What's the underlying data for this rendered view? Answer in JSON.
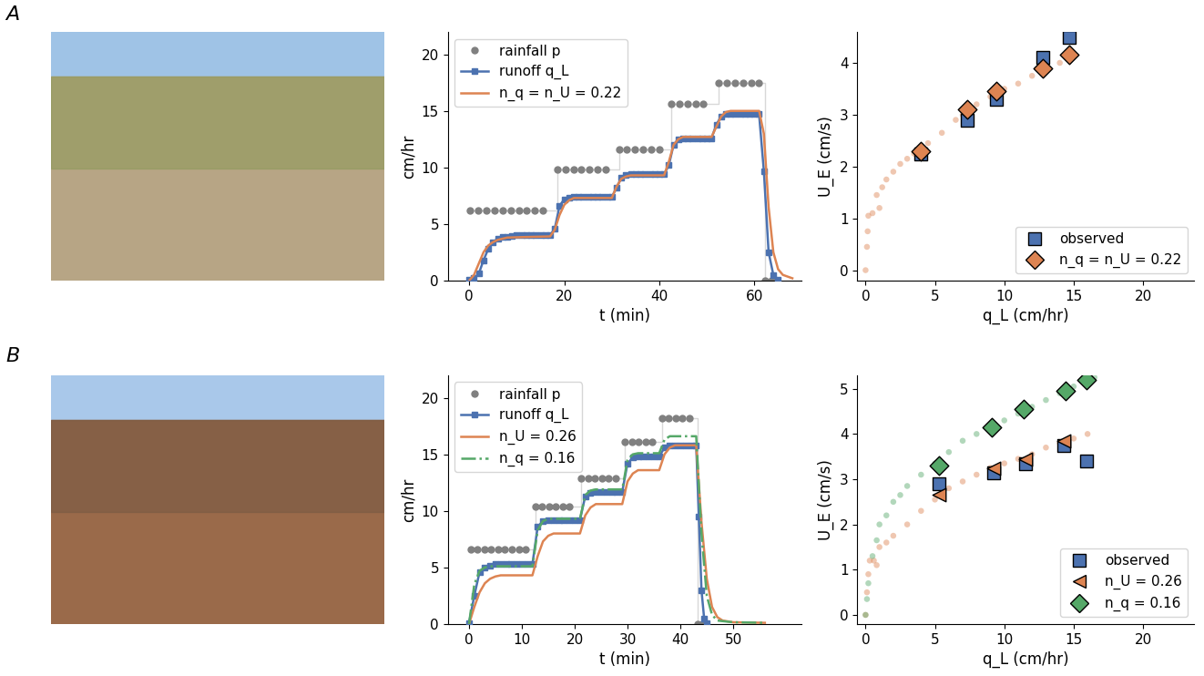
{
  "panel_labels": [
    "A",
    "B"
  ],
  "chart_data": [
    {
      "type": "line",
      "xlabel": "t (min)",
      "ylabel": "cm/hr",
      "xlim": [
        -4.5,
        70
      ],
      "xticks": [
        0,
        20,
        40,
        60
      ],
      "ylim": [
        0,
        22
      ],
      "yticks": [
        0,
        5,
        10,
        15,
        20
      ],
      "grid": false,
      "legend": "upper left",
      "series": [
        {
          "name": "rainfall p",
          "color": "#808080",
          "marker": "circle",
          "line_style": "steps",
          "x": [
            0.2,
            1.9,
            3.6,
            5.3,
            7.0,
            8.7,
            10.4,
            12.1,
            13.8,
            15.5,
            18.5,
            20.2,
            21.9,
            23.6,
            25.3,
            27.0,
            28.7,
            31.5,
            33.2,
            34.9,
            36.6,
            38.3,
            40.0,
            42.5,
            44.2,
            45.9,
            47.6,
            49.3,
            52.5,
            54.2,
            55.9,
            57.6,
            59.3,
            61.0,
            62.2,
            63.5
          ],
          "values": [
            6.2,
            6.2,
            6.2,
            6.2,
            6.2,
            6.2,
            6.2,
            6.2,
            6.2,
            6.2,
            9.8,
            9.8,
            9.8,
            9.8,
            9.8,
            9.8,
            9.8,
            11.6,
            11.6,
            11.6,
            11.6,
            11.6,
            11.6,
            15.6,
            15.6,
            15.6,
            15.6,
            15.6,
            17.5,
            17.5,
            17.5,
            17.5,
            17.5,
            17.5,
            0,
            0
          ]
        },
        {
          "name": "runoff q_L",
          "color": "#4c72b0",
          "marker": "square",
          "line_style": "solid",
          "x": [
            0,
            1,
            2,
            3,
            4,
            5,
            6,
            7,
            8,
            9,
            10,
            11,
            12,
            13,
            14,
            15,
            16,
            17,
            18,
            19,
            20,
            21,
            22,
            23,
            24,
            25,
            26,
            27,
            28,
            29,
            30,
            31,
            32,
            33,
            34,
            35,
            36,
            37,
            38,
            39,
            40,
            41,
            42,
            43,
            44,
            45,
            46,
            47,
            48,
            49,
            50,
            51,
            52,
            53,
            54,
            55,
            56,
            57,
            58,
            59,
            60,
            61,
            62,
            63,
            64,
            65
          ],
          "values": [
            0.1,
            0.2,
            0.6,
            1.8,
            2.8,
            3.4,
            3.7,
            3.85,
            3.9,
            3.95,
            4.0,
            4.0,
            4.0,
            4.0,
            4.0,
            4.0,
            4.0,
            4.0,
            4.6,
            6.6,
            7.2,
            7.35,
            7.4,
            7.4,
            7.4,
            7.4,
            7.4,
            7.4,
            7.4,
            7.4,
            7.4,
            8.2,
            9.1,
            9.35,
            9.4,
            9.4,
            9.4,
            9.4,
            9.4,
            9.4,
            9.4,
            9.4,
            10.2,
            12.0,
            12.5,
            12.6,
            12.6,
            12.6,
            12.6,
            12.6,
            12.6,
            12.6,
            13.8,
            14.5,
            14.7,
            14.7,
            14.7,
            14.7,
            14.7,
            14.7,
            14.7,
            14.7,
            9.7,
            2.5,
            0.5,
            0.1
          ]
        },
        {
          "name": "n_q = n_U = 0.22",
          "color": "#dd8452",
          "marker": "none",
          "line_style": "solid",
          "x": [
            0,
            1,
            2,
            3,
            4,
            5,
            6,
            7,
            8,
            12,
            17,
            18,
            19,
            20,
            21,
            22,
            30,
            31,
            32,
            33,
            34,
            41,
            42,
            43,
            44,
            45,
            51,
            52,
            53,
            54,
            55,
            61,
            62,
            63,
            64,
            65,
            66,
            68
          ],
          "values": [
            0,
            0.5,
            1.5,
            2.5,
            3.1,
            3.4,
            3.6,
            3.7,
            3.8,
            3.85,
            3.9,
            4.5,
            5.8,
            6.7,
            7.1,
            7.3,
            7.3,
            8.3,
            9.0,
            9.2,
            9.3,
            9.3,
            10.5,
            12.0,
            12.5,
            12.7,
            12.7,
            13.6,
            14.5,
            14.9,
            15.0,
            15.0,
            13.0,
            6.5,
            2.5,
            1.0,
            0.5,
            0.2
          ]
        }
      ]
    },
    {
      "type": "scatter",
      "xlabel": "q_L (cm/hr)",
      "ylabel": "U_E (cm/s)",
      "xlim": [
        -0.6,
        23.7
      ],
      "xticks": [
        0,
        5,
        10,
        15,
        20
      ],
      "ylim": [
        -0.2,
        4.6
      ],
      "yticks": [
        0,
        1,
        2,
        3,
        4
      ],
      "grid": false,
      "legend": "lower right",
      "series": [
        {
          "color": "#dd8452",
          "marker": "circle",
          "x": [
            0,
            0.1,
            0.15,
            0.2,
            0.5,
            0.8,
            1.0,
            1.2,
            1.5,
            2,
            2.5,
            3,
            3.5,
            4,
            4.5,
            5.5,
            6.5,
            7,
            8,
            9,
            10,
            11,
            12,
            13,
            14,
            15
          ],
          "values": [
            0,
            0.45,
            0.75,
            1.05,
            1.1,
            1.45,
            1.2,
            1.6,
            1.75,
            1.9,
            2.05,
            2.15,
            2.25,
            2.35,
            2.45,
            2.65,
            2.9,
            3.0,
            3.2,
            3.35,
            3.5,
            3.6,
            3.75,
            3.85,
            4.0,
            4.15
          ]
        },
        {
          "name": "observed",
          "color": "#4c72b0",
          "marker": "square",
          "x": [
            4.0,
            7.3,
            9.4,
            12.8,
            14.7
          ],
          "values": [
            2.25,
            2.9,
            3.3,
            4.1,
            4.5
          ]
        },
        {
          "name": "n_q = n_U = 0.22",
          "color": "#dd8452",
          "marker": "diamond",
          "x": [
            4.0,
            7.3,
            9.4,
            12.8,
            14.7
          ],
          "values": [
            2.3,
            3.1,
            3.45,
            3.9,
            4.15
          ]
        }
      ]
    },
    {
      "type": "line",
      "xlabel": "t (min)",
      "ylabel": "cm/hr",
      "xlim": [
        -4,
        63
      ],
      "xticks": [
        0,
        10,
        20,
        30,
        40,
        50
      ],
      "ylim": [
        0,
        22
      ],
      "yticks": [
        0,
        5,
        10,
        15,
        20
      ],
      "grid": false,
      "legend": "upper left",
      "series": [
        {
          "name": "rainfall p",
          "color": "#808080",
          "marker": "circle",
          "line_style": "steps",
          "x": [
            0.3,
            1.6,
            2.9,
            4.2,
            5.5,
            6.8,
            8.1,
            9.4,
            10.7,
            12.5,
            13.8,
            15.1,
            16.4,
            17.7,
            19.0,
            21.2,
            22.5,
            23.8,
            25.1,
            26.4,
            27.7,
            29.5,
            30.8,
            32.1,
            33.4,
            34.7,
            36.5,
            37.8,
            39.1,
            40.4,
            41.7,
            43.2,
            44.2
          ],
          "values": [
            6.6,
            6.6,
            6.6,
            6.6,
            6.6,
            6.6,
            6.6,
            6.6,
            6.6,
            10.4,
            10.4,
            10.4,
            10.4,
            10.4,
            10.4,
            12.9,
            12.9,
            12.9,
            12.9,
            12.9,
            12.9,
            16.1,
            16.1,
            16.1,
            16.1,
            16.1,
            18.2,
            18.2,
            18.2,
            18.2,
            18.2,
            0,
            0
          ]
        },
        {
          "name": "runoff q_L",
          "color": "#4c72b0",
          "marker": "square",
          "line_style": "solid",
          "x": [
            0,
            1,
            2,
            3,
            4,
            5,
            6,
            7,
            8,
            9,
            10,
            11,
            12,
            13,
            14,
            15,
            16,
            17,
            18,
            19,
            20,
            21,
            22,
            23,
            24,
            25,
            26,
            27,
            28,
            29,
            30,
            31,
            32,
            33,
            34,
            35,
            36,
            37,
            38,
            39,
            40,
            41,
            42,
            43,
            43.5,
            44,
            44.5,
            45
          ],
          "values": [
            0.1,
            2.5,
            4.6,
            5.0,
            5.15,
            5.3,
            5.3,
            5.3,
            5.3,
            5.3,
            5.3,
            5.3,
            5.3,
            8.6,
            9.1,
            9.2,
            9.2,
            9.2,
            9.2,
            9.2,
            9.2,
            9.2,
            11.3,
            11.6,
            11.7,
            11.7,
            11.7,
            11.7,
            11.7,
            11.7,
            14.2,
            14.7,
            14.8,
            14.8,
            14.8,
            14.8,
            14.8,
            15.6,
            15.8,
            15.8,
            15.8,
            15.8,
            15.8,
            15.8,
            9.5,
            3.0,
            0.5,
            0.1
          ]
        },
        {
          "name": "n_U = 0.26",
          "color": "#dd8452",
          "marker": "none",
          "line_style": "solid",
          "x": [
            0,
            1,
            2,
            3,
            4,
            5,
            6,
            12,
            13,
            14,
            15,
            16,
            21,
            22,
            23,
            24,
            29,
            30,
            31,
            32,
            36,
            37,
            38,
            39,
            43,
            44,
            45,
            46,
            47,
            48,
            50,
            56
          ],
          "values": [
            0,
            1.5,
            2.8,
            3.6,
            4.0,
            4.2,
            4.3,
            4.3,
            6.0,
            7.3,
            7.8,
            8.0,
            8.0,
            9.6,
            10.3,
            10.6,
            10.6,
            12.6,
            13.3,
            13.6,
            13.6,
            15.0,
            15.6,
            15.8,
            15.8,
            9.0,
            4.0,
            1.5,
            0.6,
            0.3,
            0.15,
            0.1
          ]
        },
        {
          "name": "n_q = 0.16",
          "color": "#55a868",
          "marker": "none",
          "line_style": "dashdot",
          "x": [
            0,
            1,
            2,
            3,
            4,
            12,
            13,
            14,
            15,
            21,
            22,
            23,
            24,
            29,
            30,
            31,
            32,
            36,
            37,
            38,
            43,
            44,
            45,
            46,
            47,
            50,
            56
          ],
          "values": [
            0,
            3.5,
            4.7,
            5.0,
            5.1,
            5.1,
            8.3,
            9.1,
            9.3,
            9.3,
            11.4,
            11.8,
            11.9,
            11.9,
            14.5,
            15.0,
            15.1,
            15.1,
            16.3,
            16.6,
            16.6,
            8.0,
            2.5,
            0.8,
            0.3,
            0.15,
            0.1
          ]
        }
      ]
    },
    {
      "type": "scatter",
      "xlabel": "q_L (cm/hr)",
      "ylabel": "U_E (cm/s)",
      "xlim": [
        -0.6,
        23.7
      ],
      "xticks": [
        0,
        5,
        10,
        15,
        20
      ],
      "ylim": [
        -0.2,
        5.3
      ],
      "yticks": [
        0,
        1,
        2,
        3,
        4,
        5
      ],
      "grid": false,
      "legend": "lower right",
      "series": [
        {
          "color": "#dd8452",
          "marker": "circle",
          "x": [
            0,
            0.1,
            0.2,
            0.3,
            0.6,
            0.8,
            1,
            1.5,
            2,
            3,
            4,
            5,
            6,
            7,
            8,
            9,
            10,
            11,
            12,
            13,
            14,
            15,
            16
          ],
          "values": [
            0,
            0.5,
            0.9,
            1.2,
            1.2,
            1.1,
            1.5,
            1.6,
            1.75,
            2.0,
            2.3,
            2.55,
            2.8,
            2.95,
            3.1,
            3.25,
            3.35,
            3.45,
            3.55,
            3.7,
            3.8,
            3.9,
            4.0
          ]
        },
        {
          "color": "#55a868",
          "marker": "circle",
          "x": [
            0,
            0.1,
            0.2,
            0.5,
            0.8,
            1,
            1.5,
            2,
            2.5,
            3,
            4,
            5,
            6,
            7,
            8,
            9,
            10,
            11,
            12,
            13,
            14,
            15,
            16,
            16.5
          ],
          "values": [
            0,
            0.35,
            0.7,
            1.3,
            1.65,
            2.0,
            2.2,
            2.5,
            2.65,
            2.85,
            3.1,
            3.35,
            3.6,
            3.85,
            4.0,
            4.15,
            4.3,
            4.45,
            4.6,
            4.75,
            4.9,
            5.05,
            5.2,
            5.25
          ]
        },
        {
          "name": "observed",
          "color": "#4c72b0",
          "marker": "square",
          "x": [
            5.3,
            9.2,
            11.5,
            14.3,
            15.9
          ],
          "values": [
            2.9,
            3.15,
            3.35,
            3.75,
            3.4
          ]
        },
        {
          "name": "n_U = 0.26",
          "color": "#dd8452",
          "marker": "triangle_left",
          "x": [
            5.3,
            9.2,
            11.5,
            14.3
          ],
          "values": [
            2.65,
            3.25,
            3.45,
            3.85
          ]
        },
        {
          "name": "n_q = 0.16",
          "color": "#55a868",
          "marker": "diamond",
          "x": [
            5.3,
            9.1,
            11.4,
            14.4,
            15.9
          ],
          "values": [
            3.3,
            4.15,
            4.55,
            4.95,
            5.2
          ]
        }
      ]
    }
  ]
}
